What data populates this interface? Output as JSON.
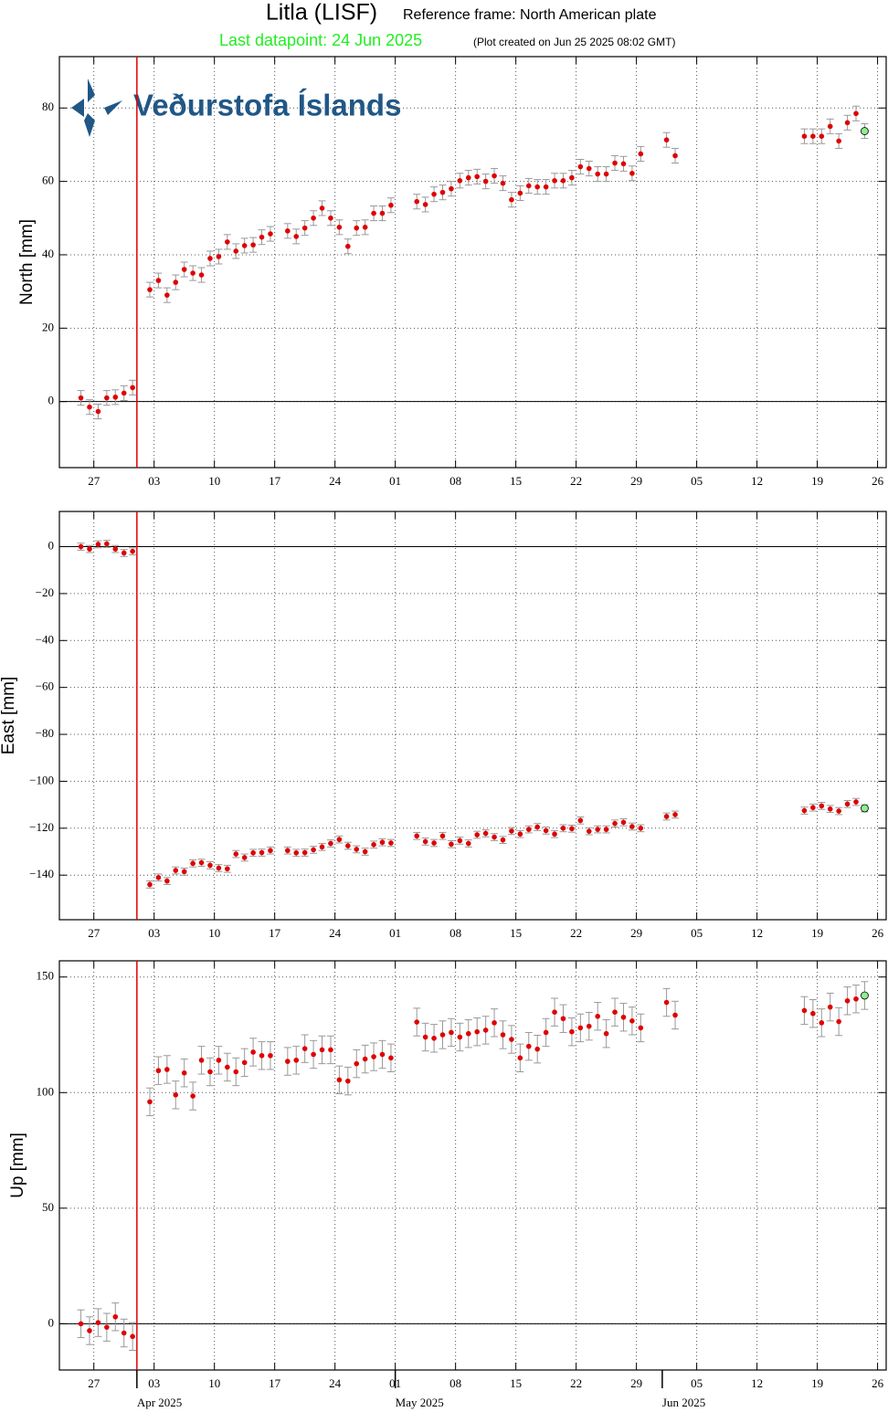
{
  "logo": "Veðurstofa Íslands",
  "chart_data": [
    {
      "type": "scatter",
      "title": "Litla (LISF)",
      "subtitle": "Reference frame: North American plate",
      "annotations": [
        "Last datapoint: 24 Jun 2025",
        "(Plot created on Jun 25 2025 08:02 GMT)"
      ],
      "ylabel": "North [mm]",
      "color": "#e00000",
      "highlight_color": "#90ee90",
      "error_color": "#999999",
      "error": 2,
      "event_date": "2025-04-01",
      "event_color": "#e00000",
      "grid": true,
      "x": [
        "2025-03-25",
        "2025-03-26",
        "2025-03-27",
        "2025-03-28",
        "2025-03-29",
        "2025-03-30",
        "2025-03-31",
        "2025-04-02",
        "2025-04-03",
        "2025-04-04",
        "2025-04-05",
        "2025-04-06",
        "2025-04-07",
        "2025-04-08",
        "2025-04-09",
        "2025-04-10",
        "2025-04-11",
        "2025-04-12",
        "2025-04-13",
        "2025-04-14",
        "2025-04-15",
        "2025-04-16",
        "2025-04-18",
        "2025-04-19",
        "2025-04-20",
        "2025-04-21",
        "2025-04-22",
        "2025-04-23",
        "2025-04-24",
        "2025-04-25",
        "2025-04-26",
        "2025-04-27",
        "2025-04-28",
        "2025-04-29",
        "2025-04-30",
        "2025-05-03",
        "2025-05-04",
        "2025-05-05",
        "2025-05-06",
        "2025-05-07",
        "2025-05-08",
        "2025-05-09",
        "2025-05-10",
        "2025-05-11",
        "2025-05-12",
        "2025-05-13",
        "2025-05-14",
        "2025-05-15",
        "2025-05-16",
        "2025-05-17",
        "2025-05-18",
        "2025-05-19",
        "2025-05-20",
        "2025-05-21",
        "2025-05-22",
        "2025-05-23",
        "2025-05-24",
        "2025-05-25",
        "2025-05-26",
        "2025-05-27",
        "2025-05-28",
        "2025-05-29",
        "2025-06-01",
        "2025-06-02",
        "2025-06-17",
        "2025-06-18",
        "2025-06-19",
        "2025-06-20",
        "2025-06-21",
        "2025-06-22",
        "2025-06-23",
        "2025-06-24"
      ],
      "values": [
        1,
        -1.5,
        -2.7,
        1,
        1.2,
        2.3,
        3.8,
        30.5,
        33,
        29,
        32.5,
        36,
        35,
        34.5,
        39,
        39.5,
        43.5,
        41,
        42.5,
        42.7,
        44.8,
        45.7,
        46.5,
        45,
        47.3,
        50,
        52.7,
        50,
        47.5,
        42.3,
        47.3,
        47.5,
        51.3,
        51.3,
        53.5,
        54.5,
        53.7,
        56.5,
        57,
        58,
        60.2,
        61,
        61.3,
        60,
        61.5,
        59.5,
        55,
        56.8,
        58.8,
        58.5,
        58.5,
        60.2,
        60.2,
        61,
        64,
        63.5,
        62,
        62,
        65,
        64.8,
        62.2,
        67.5,
        71.3,
        67,
        72.3,
        72.3,
        72.3,
        75,
        71,
        76,
        78.5,
        73.7
      ],
      "xlim": [
        "2025-03-23",
        "2025-06-27"
      ],
      "xticks": [
        {
          "value": "2025-03-27",
          "label": "27"
        },
        {
          "value": "2025-04-03",
          "label": "03"
        },
        {
          "value": "2025-04-10",
          "label": "10"
        },
        {
          "value": "2025-04-17",
          "label": "17"
        },
        {
          "value": "2025-04-24",
          "label": "24"
        },
        {
          "value": "2025-05-01",
          "label": "01"
        },
        {
          "value": "2025-05-08",
          "label": "08"
        },
        {
          "value": "2025-05-15",
          "label": "15"
        },
        {
          "value": "2025-05-22",
          "label": "22"
        },
        {
          "value": "2025-05-29",
          "label": "29"
        },
        {
          "value": "2025-06-05",
          "label": "05"
        },
        {
          "value": "2025-06-12",
          "label": "12"
        },
        {
          "value": "2025-06-19",
          "label": "19"
        },
        {
          "value": "2025-06-26",
          "label": "26"
        }
      ],
      "ylim": [
        -18,
        94
      ],
      "yticks": [
        0,
        20,
        40,
        60,
        80
      ]
    },
    {
      "type": "scatter",
      "ylabel": "East [mm]",
      "color": "#e00000",
      "highlight_color": "#90ee90",
      "error_color": "#999999",
      "error": 1.5,
      "event_date": "2025-04-01",
      "event_color": "#e00000",
      "grid": true,
      "x": [
        "2025-03-25",
        "2025-03-26",
        "2025-03-27",
        "2025-03-28",
        "2025-03-29",
        "2025-03-30",
        "2025-03-31",
        "2025-04-02",
        "2025-04-03",
        "2025-04-04",
        "2025-04-05",
        "2025-04-06",
        "2025-04-07",
        "2025-04-08",
        "2025-04-09",
        "2025-04-10",
        "2025-04-11",
        "2025-04-12",
        "2025-04-13",
        "2025-04-14",
        "2025-04-15",
        "2025-04-16",
        "2025-04-18",
        "2025-04-19",
        "2025-04-20",
        "2025-04-21",
        "2025-04-22",
        "2025-04-23",
        "2025-04-24",
        "2025-04-25",
        "2025-04-26",
        "2025-04-27",
        "2025-04-28",
        "2025-04-29",
        "2025-04-30",
        "2025-05-03",
        "2025-05-04",
        "2025-05-05",
        "2025-05-06",
        "2025-05-07",
        "2025-05-08",
        "2025-05-09",
        "2025-05-10",
        "2025-05-11",
        "2025-05-12",
        "2025-05-13",
        "2025-05-14",
        "2025-05-15",
        "2025-05-16",
        "2025-05-17",
        "2025-05-18",
        "2025-05-19",
        "2025-05-20",
        "2025-05-21",
        "2025-05-22",
        "2025-05-23",
        "2025-05-24",
        "2025-05-25",
        "2025-05-26",
        "2025-05-27",
        "2025-05-28",
        "2025-05-29",
        "2025-06-01",
        "2025-06-02",
        "2025-06-17",
        "2025-06-18",
        "2025-06-19",
        "2025-06-20",
        "2025-06-21",
        "2025-06-22",
        "2025-06-23",
        "2025-06-24"
      ],
      "values": [
        0,
        -1,
        1,
        1.2,
        -1,
        -2.7,
        -2,
        -144,
        -141,
        -142.5,
        -138,
        -138.5,
        -135,
        -134.7,
        -135.8,
        -137,
        -137.3,
        -131,
        -132.5,
        -130.5,
        -130.4,
        -129.5,
        -129.5,
        -130.5,
        -130.4,
        -129.2,
        -128,
        -126.5,
        -124.8,
        -127.5,
        -129,
        -130,
        -127,
        -126,
        -126.3,
        -123.3,
        -125.7,
        -126.3,
        -123.3,
        -126.8,
        -125.3,
        -126.5,
        -122.8,
        -122.2,
        -123.8,
        -125,
        -121.2,
        -122.5,
        -120.5,
        -119.5,
        -121,
        -122.5,
        -120,
        -120.2,
        -116.7,
        -121.3,
        -120.5,
        -120.5,
        -118,
        -117.5,
        -119.3,
        -120,
        -115,
        -114.2,
        -112.5,
        -111.2,
        -110.5,
        -111.8,
        -112.7,
        -109.7,
        -108.8,
        -111.5
      ],
      "xlim": [
        "2025-03-23",
        "2025-06-27"
      ],
      "xticks": [
        {
          "value": "2025-03-27",
          "label": "27"
        },
        {
          "value": "2025-04-03",
          "label": "03"
        },
        {
          "value": "2025-04-10",
          "label": "10"
        },
        {
          "value": "2025-04-17",
          "label": "17"
        },
        {
          "value": "2025-04-24",
          "label": "24"
        },
        {
          "value": "2025-05-01",
          "label": "01"
        },
        {
          "value": "2025-05-08",
          "label": "08"
        },
        {
          "value": "2025-05-15",
          "label": "15"
        },
        {
          "value": "2025-05-22",
          "label": "22"
        },
        {
          "value": "2025-05-29",
          "label": "29"
        },
        {
          "value": "2025-06-05",
          "label": "05"
        },
        {
          "value": "2025-06-12",
          "label": "12"
        },
        {
          "value": "2025-06-19",
          "label": "19"
        },
        {
          "value": "2025-06-26",
          "label": "26"
        }
      ],
      "ylim": [
        -159,
        15
      ],
      "yticks": [
        0,
        {
          "value": -20,
          "label": "−20"
        },
        {
          "value": -40,
          "label": "−40"
        },
        {
          "value": -60,
          "label": "−60"
        },
        {
          "value": -80,
          "label": "−80"
        },
        {
          "value": -100,
          "label": "−100"
        },
        {
          "value": -120,
          "label": "−120"
        },
        {
          "value": -140,
          "label": "−140"
        }
      ]
    },
    {
      "type": "scatter",
      "ylabel": "Up [mm]",
      "color": "#e00000",
      "highlight_color": "#90ee90",
      "error_color": "#999999",
      "error": 6,
      "event_date": "2025-04-01",
      "event_color": "#e00000",
      "grid": true,
      "x": [
        "2025-03-25",
        "2025-03-26",
        "2025-03-27",
        "2025-03-28",
        "2025-03-29",
        "2025-03-30",
        "2025-03-31",
        "2025-04-02",
        "2025-04-03",
        "2025-04-04",
        "2025-04-05",
        "2025-04-06",
        "2025-04-07",
        "2025-04-08",
        "2025-04-09",
        "2025-04-10",
        "2025-04-11",
        "2025-04-12",
        "2025-04-13",
        "2025-04-14",
        "2025-04-15",
        "2025-04-16",
        "2025-04-18",
        "2025-04-19",
        "2025-04-20",
        "2025-04-21",
        "2025-04-22",
        "2025-04-23",
        "2025-04-24",
        "2025-04-25",
        "2025-04-26",
        "2025-04-27",
        "2025-04-28",
        "2025-04-29",
        "2025-04-30",
        "2025-05-03",
        "2025-05-04",
        "2025-05-05",
        "2025-05-06",
        "2025-05-07",
        "2025-05-08",
        "2025-05-09",
        "2025-05-10",
        "2025-05-11",
        "2025-05-12",
        "2025-05-13",
        "2025-05-14",
        "2025-05-15",
        "2025-05-16",
        "2025-05-17",
        "2025-05-18",
        "2025-05-19",
        "2025-05-20",
        "2025-05-21",
        "2025-05-22",
        "2025-05-23",
        "2025-05-24",
        "2025-05-25",
        "2025-05-26",
        "2025-05-27",
        "2025-05-28",
        "2025-05-29",
        "2025-06-01",
        "2025-06-02",
        "2025-06-17",
        "2025-06-18",
        "2025-06-19",
        "2025-06-20",
        "2025-06-21",
        "2025-06-22",
        "2025-06-23",
        "2025-06-24"
      ],
      "values": [
        0,
        -3,
        0.5,
        -1.5,
        3,
        -4,
        -5.5,
        96,
        109.5,
        110,
        99,
        108.5,
        98.5,
        114,
        109,
        114,
        111,
        109,
        113,
        117.5,
        116,
        116,
        113.5,
        114,
        119,
        116.5,
        118.5,
        118.5,
        105.5,
        105,
        112.5,
        114.5,
        115.5,
        116.5,
        115,
        130.5,
        124,
        123.5,
        125,
        126,
        124,
        125.5,
        126.3,
        127,
        130.2,
        125,
        123,
        115,
        120,
        118.8,
        126,
        134.8,
        132,
        126.3,
        128,
        128.7,
        133,
        125.5,
        134.8,
        132.6,
        131,
        128,
        139,
        133.5,
        135.5,
        134.2,
        130.2,
        137,
        130.7,
        139.7,
        140.5,
        142
      ],
      "xlim": [
        "2025-03-23",
        "2025-06-27"
      ],
      "xticks": [
        {
          "value": "2025-03-27",
          "label": "27"
        },
        {
          "value": "2025-04-03",
          "label": "03"
        },
        {
          "value": "2025-04-10",
          "label": "10"
        },
        {
          "value": "2025-04-17",
          "label": "17"
        },
        {
          "value": "2025-04-24",
          "label": "24"
        },
        {
          "value": "2025-05-01",
          "label": "01"
        },
        {
          "value": "2025-05-08",
          "label": "08"
        },
        {
          "value": "2025-05-15",
          "label": "15"
        },
        {
          "value": "2025-05-22",
          "label": "22"
        },
        {
          "value": "2025-05-29",
          "label": "29"
        },
        {
          "value": "2025-06-05",
          "label": "05"
        },
        {
          "value": "2025-06-12",
          "label": "12"
        },
        {
          "value": "2025-06-19",
          "label": "19"
        },
        {
          "value": "2025-06-26",
          "label": "26"
        }
      ],
      "month_ticks": [
        {
          "value": "2025-04-01",
          "label": "Apr 2025"
        },
        {
          "value": "2025-05-01",
          "label": "May 2025"
        },
        {
          "value": "2025-06-01",
          "label": "Jun 2025"
        }
      ],
      "ylim": [
        -20,
        157
      ],
      "yticks": [
        0,
        50,
        100,
        150
      ]
    }
  ]
}
